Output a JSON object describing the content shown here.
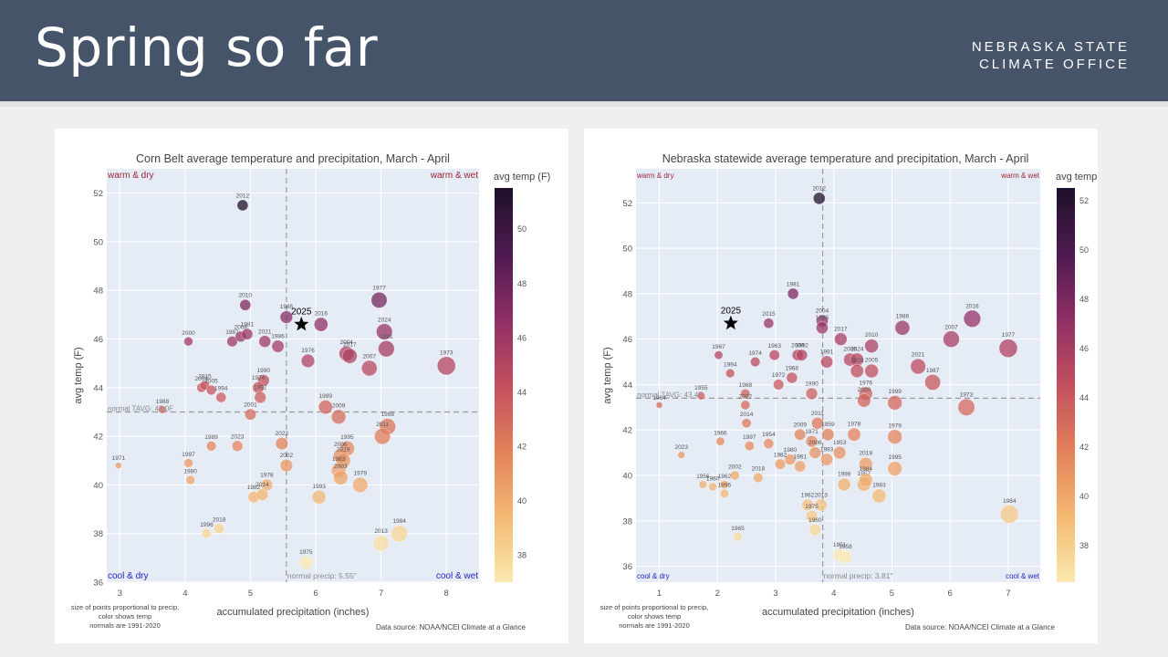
{
  "header": {
    "title": "Spring so far",
    "org_line1": "NEBRASKA STATE",
    "org_line2": "CLIMATE OFFICE"
  },
  "colors": {
    "header_bg": "#465469",
    "plot_bg": "#e5ecf6",
    "corner_warm": "#9b2335",
    "corner_cool": "#1f1fbf",
    "colorscale": [
      "#fbeab0",
      "#f3b872",
      "#e2815a",
      "#c24f5e",
      "#8f2f66",
      "#4d1a50",
      "#1e1028"
    ]
  },
  "chart_data": [
    {
      "type": "scatter",
      "title": "Corn Belt average temperature and precipitation, March - April",
      "xlabel": "accumulated precipitation (inches)",
      "ylabel": "avg temp (F)",
      "xlim": [
        2.8,
        8.5
      ],
      "ylim": [
        36,
        53
      ],
      "xticks": [
        3,
        4,
        5,
        6,
        7,
        8
      ],
      "yticks": [
        36,
        38,
        40,
        42,
        44,
        46,
        48,
        50,
        52
      ],
      "grid": true,
      "colorbar": {
        "title": "avg temp (F)",
        "range": [
          37,
          51.5
        ],
        "ticks": [
          38,
          40,
          42,
          44,
          46,
          48,
          50
        ]
      },
      "corner_labels": {
        "top_left": "warm & dry",
        "top_right": "warm & wet",
        "bottom_left": "cool & dry",
        "bottom_right": "cool & wet"
      },
      "normal_temp": {
        "value": 43.0,
        "label": "normal TAVG: 43.0F"
      },
      "normal_precip": {
        "value": 5.55,
        "label": "normal precip: 5.55\""
      },
      "current": {
        "label": "2025",
        "x": 5.78,
        "y": 46.6
      },
      "footnote": [
        "size of points proportional to precip,",
        "color shows temp",
        "normals are 1991-2020"
      ],
      "source": "Data source: NOAA/NCEI Climate at a Glance",
      "points": [
        {
          "year": "2012",
          "x": 4.88,
          "y": 51.5
        },
        {
          "year": "2010",
          "x": 4.92,
          "y": 47.4
        },
        {
          "year": "1977",
          "x": 6.97,
          "y": 47.6
        },
        {
          "year": "1985",
          "x": 5.55,
          "y": 46.9
        },
        {
          "year": "2016",
          "x": 6.08,
          "y": 46.6
        },
        {
          "year": "2024",
          "x": 7.05,
          "y": 46.3
        },
        {
          "year": "2000",
          "x": 4.05,
          "y": 45.9
        },
        {
          "year": "1987",
          "x": 4.72,
          "y": 45.9
        },
        {
          "year": "2008",
          "x": 4.85,
          "y": 46.1
        },
        {
          "year": "1981",
          "x": 4.95,
          "y": 46.2
        },
        {
          "year": "2021",
          "x": 5.22,
          "y": 45.9
        },
        {
          "year": "1986",
          "x": 5.42,
          "y": 45.7
        },
        {
          "year": "1976",
          "x": 5.88,
          "y": 45.1
        },
        {
          "year": "2004",
          "x": 6.47,
          "y": 45.4
        },
        {
          "year": "2017",
          "x": 6.52,
          "y": 45.3
        },
        {
          "year": "1991",
          "x": 7.08,
          "y": 45.6
        },
        {
          "year": "2007",
          "x": 6.82,
          "y": 44.8
        },
        {
          "year": "1973",
          "x": 8.0,
          "y": 44.9
        },
        {
          "year": "1990",
          "x": 5.2,
          "y": 44.3
        },
        {
          "year": "2009",
          "x": 4.25,
          "y": 44.0
        },
        {
          "year": "2015",
          "x": 4.3,
          "y": 44.1
        },
        {
          "year": "2005",
          "x": 4.4,
          "y": 43.9
        },
        {
          "year": "1994",
          "x": 4.55,
          "y": 43.6
        },
        {
          "year": "1974",
          "x": 5.12,
          "y": 44.0
        },
        {
          "year": "1992",
          "x": 5.15,
          "y": 43.6
        },
        {
          "year": "1988",
          "x": 3.65,
          "y": 43.1
        },
        {
          "year": "1999",
          "x": 6.15,
          "y": 43.2
        },
        {
          "year": "2009",
          "x": 6.35,
          "y": 42.8
        },
        {
          "year": "2001",
          "x": 5.0,
          "y": 42.9
        },
        {
          "year": "1998",
          "x": 7.1,
          "y": 42.4
        },
        {
          "year": "2011",
          "x": 7.02,
          "y": 42.0
        },
        {
          "year": "1989",
          "x": 4.4,
          "y": 41.6
        },
        {
          "year": "2023",
          "x": 4.8,
          "y": 41.6
        },
        {
          "year": "2022",
          "x": 5.48,
          "y": 41.7
        },
        {
          "year": "1995",
          "x": 6.48,
          "y": 41.5
        },
        {
          "year": "2006",
          "x": 6.38,
          "y": 41.2
        },
        {
          "year": "2019",
          "x": 6.42,
          "y": 41.0
        },
        {
          "year": "1971",
          "x": 2.98,
          "y": 40.8
        },
        {
          "year": "1997",
          "x": 4.05,
          "y": 40.9
        },
        {
          "year": "1980",
          "x": 4.08,
          "y": 40.2
        },
        {
          "year": "2002",
          "x": 5.55,
          "y": 40.8
        },
        {
          "year": "1983",
          "x": 6.35,
          "y": 40.6
        },
        {
          "year": "1978",
          "x": 5.25,
          "y": 40.0
        },
        {
          "year": "1979",
          "x": 6.68,
          "y": 40.0
        },
        {
          "year": "2003",
          "x": 6.38,
          "y": 40.3
        },
        {
          "year": "1982",
          "x": 5.05,
          "y": 39.5
        },
        {
          "year": "2014",
          "x": 5.18,
          "y": 39.6
        },
        {
          "year": "1993",
          "x": 6.05,
          "y": 39.5
        },
        {
          "year": "2018",
          "x": 4.52,
          "y": 38.2
        },
        {
          "year": "1996",
          "x": 4.33,
          "y": 38.0
        },
        {
          "year": "2013",
          "x": 7.0,
          "y": 37.6
        },
        {
          "year": "1984",
          "x": 7.28,
          "y": 38.0
        },
        {
          "year": "1975",
          "x": 5.85,
          "y": 36.8
        }
      ]
    },
    {
      "type": "scatter",
      "title": "Nebraska statewide average temperature and precipitation, March - April",
      "xlabel": "accumulated precipitation (inches)",
      "ylabel": "avg temp (F)",
      "xlim": [
        0.6,
        7.55
      ],
      "ylim": [
        35.3,
        53.5
      ],
      "xticks": [
        1,
        2,
        3,
        4,
        5,
        6,
        7
      ],
      "yticks": [
        36,
        38,
        40,
        42,
        44,
        46,
        48,
        50,
        52
      ],
      "grid": true,
      "colorbar": {
        "title": "avg temp (F)",
        "range": [
          36.5,
          52.5
        ],
        "ticks": [
          38,
          40,
          42,
          44,
          46,
          48,
          50,
          52
        ]
      },
      "corner_labels": {
        "top_left": "warm & dry",
        "top_right": "warm & wet",
        "bottom_left": "cool & dry",
        "bottom_right": "cool & wet"
      },
      "normal_temp": {
        "value": 43.4,
        "label": "normal TAVG: 43.4F"
      },
      "normal_precip": {
        "value": 3.81,
        "label": "normal precip: 3.81\""
      },
      "current": {
        "label": "2025",
        "x": 2.23,
        "y": 46.7
      },
      "footnote": [
        "size of points proportional to precip,",
        "color shows temp",
        "normals are 1991-2020"
      ],
      "source": "Data source: NOAA/NCEI Climate at a Glance",
      "points": [
        {
          "year": "2012",
          "x": 3.75,
          "y": 52.2
        },
        {
          "year": "1981",
          "x": 3.3,
          "y": 48.0
        },
        {
          "year": "2015",
          "x": 2.88,
          "y": 46.7
        },
        {
          "year": "2004",
          "x": 3.8,
          "y": 46.8
        },
        {
          "year": "1985",
          "x": 3.8,
          "y": 46.5
        },
        {
          "year": "1986",
          "x": 5.18,
          "y": 46.5
        },
        {
          "year": "2016",
          "x": 6.38,
          "y": 46.9
        },
        {
          "year": "2017",
          "x": 4.12,
          "y": 46.0
        },
        {
          "year": "2007",
          "x": 6.02,
          "y": 46.0
        },
        {
          "year": "2010",
          "x": 4.65,
          "y": 45.7
        },
        {
          "year": "1977",
          "x": 7.0,
          "y": 45.6
        },
        {
          "year": "1967",
          "x": 2.02,
          "y": 45.3
        },
        {
          "year": "1974",
          "x": 2.65,
          "y": 45.0
        },
        {
          "year": "1963",
          "x": 2.98,
          "y": 45.3
        },
        {
          "year": "2000",
          "x": 3.38,
          "y": 45.3
        },
        {
          "year": "1992",
          "x": 3.45,
          "y": 45.3
        },
        {
          "year": "1991",
          "x": 3.88,
          "y": 45.0
        },
        {
          "year": "2006",
          "x": 4.28,
          "y": 45.1
        },
        {
          "year": "2024",
          "x": 4.4,
          "y": 45.1
        },
        {
          "year": "2021",
          "x": 5.45,
          "y": 44.8
        },
        {
          "year": "1994",
          "x": 2.22,
          "y": 44.5
        },
        {
          "year": "1968",
          "x": 3.28,
          "y": 44.3
        },
        {
          "year": "1972",
          "x": 3.05,
          "y": 44.0
        },
        {
          "year": "2003",
          "x": 4.4,
          "y": 44.6
        },
        {
          "year": "2005",
          "x": 4.65,
          "y": 44.6
        },
        {
          "year": "1987",
          "x": 5.7,
          "y": 44.1
        },
        {
          "year": "1990",
          "x": 3.62,
          "y": 43.6
        },
        {
          "year": "1976",
          "x": 4.55,
          "y": 43.6
        },
        {
          "year": "2020",
          "x": 4.52,
          "y": 43.3
        },
        {
          "year": "1999",
          "x": 5.05,
          "y": 43.2
        },
        {
          "year": "1955",
          "x": 1.72,
          "y": 43.5
        },
        {
          "year": "1964",
          "x": 1.0,
          "y": 43.1
        },
        {
          "year": "1988",
          "x": 2.48,
          "y": 43.6
        },
        {
          "year": "2022",
          "x": 2.48,
          "y": 43.1
        },
        {
          "year": "1973",
          "x": 6.28,
          "y": 43.0
        },
        {
          "year": "2014",
          "x": 2.5,
          "y": 42.3
        },
        {
          "year": "2011",
          "x": 3.72,
          "y": 42.3
        },
        {
          "year": "1966",
          "x": 2.05,
          "y": 41.5
        },
        {
          "year": "1997",
          "x": 2.55,
          "y": 41.3
        },
        {
          "year": "1954",
          "x": 2.88,
          "y": 41.4
        },
        {
          "year": "2009",
          "x": 3.42,
          "y": 41.8
        },
        {
          "year": "1959",
          "x": 3.9,
          "y": 41.8
        },
        {
          "year": "1978",
          "x": 4.35,
          "y": 41.8
        },
        {
          "year": "1979",
          "x": 5.05,
          "y": 41.7
        },
        {
          "year": "1971",
          "x": 3.62,
          "y": 41.5
        },
        {
          "year": "2008",
          "x": 3.68,
          "y": 41.0
        },
        {
          "year": "1953",
          "x": 4.1,
          "y": 41.0
        },
        {
          "year": "1980",
          "x": 3.25,
          "y": 40.7
        },
        {
          "year": "1993",
          "x": 3.88,
          "y": 40.7
        },
        {
          "year": "2023",
          "x": 1.38,
          "y": 40.9
        },
        {
          "year": "1982",
          "x": 3.08,
          "y": 40.5
        },
        {
          "year": "1961",
          "x": 3.42,
          "y": 40.4
        },
        {
          "year": "2019",
          "x": 4.55,
          "y": 40.5
        },
        {
          "year": "1995",
          "x": 5.05,
          "y": 40.3
        },
        {
          "year": "2002",
          "x": 2.3,
          "y": 40.0
        },
        {
          "year": "2018",
          "x": 2.7,
          "y": 39.9
        },
        {
          "year": "1956",
          "x": 1.75,
          "y": 39.6
        },
        {
          "year": "1960",
          "x": 1.92,
          "y": 39.5
        },
        {
          "year": "1962",
          "x": 2.12,
          "y": 39.6
        },
        {
          "year": "1996",
          "x": 2.12,
          "y": 39.2
        },
        {
          "year": "1998",
          "x": 4.18,
          "y": 39.6
        },
        {
          "year": "1957",
          "x": 4.52,
          "y": 39.6
        },
        {
          "year": "1984",
          "x": 4.55,
          "y": 39.8
        },
        {
          "year": "1983",
          "x": 4.78,
          "y": 39.1
        },
        {
          "year": "1962",
          "x": 3.55,
          "y": 38.7
        },
        {
          "year": "2013",
          "x": 3.78,
          "y": 38.7
        },
        {
          "year": "1975",
          "x": 3.62,
          "y": 38.2
        },
        {
          "year": "1960",
          "x": 3.68,
          "y": 37.6
        },
        {
          "year": "1984",
          "x": 7.02,
          "y": 38.3
        },
        {
          "year": "1965",
          "x": 2.35,
          "y": 37.3
        },
        {
          "year": "1951",
          "x": 4.1,
          "y": 36.5
        },
        {
          "year": "1958",
          "x": 4.2,
          "y": 36.4
        }
      ]
    }
  ]
}
